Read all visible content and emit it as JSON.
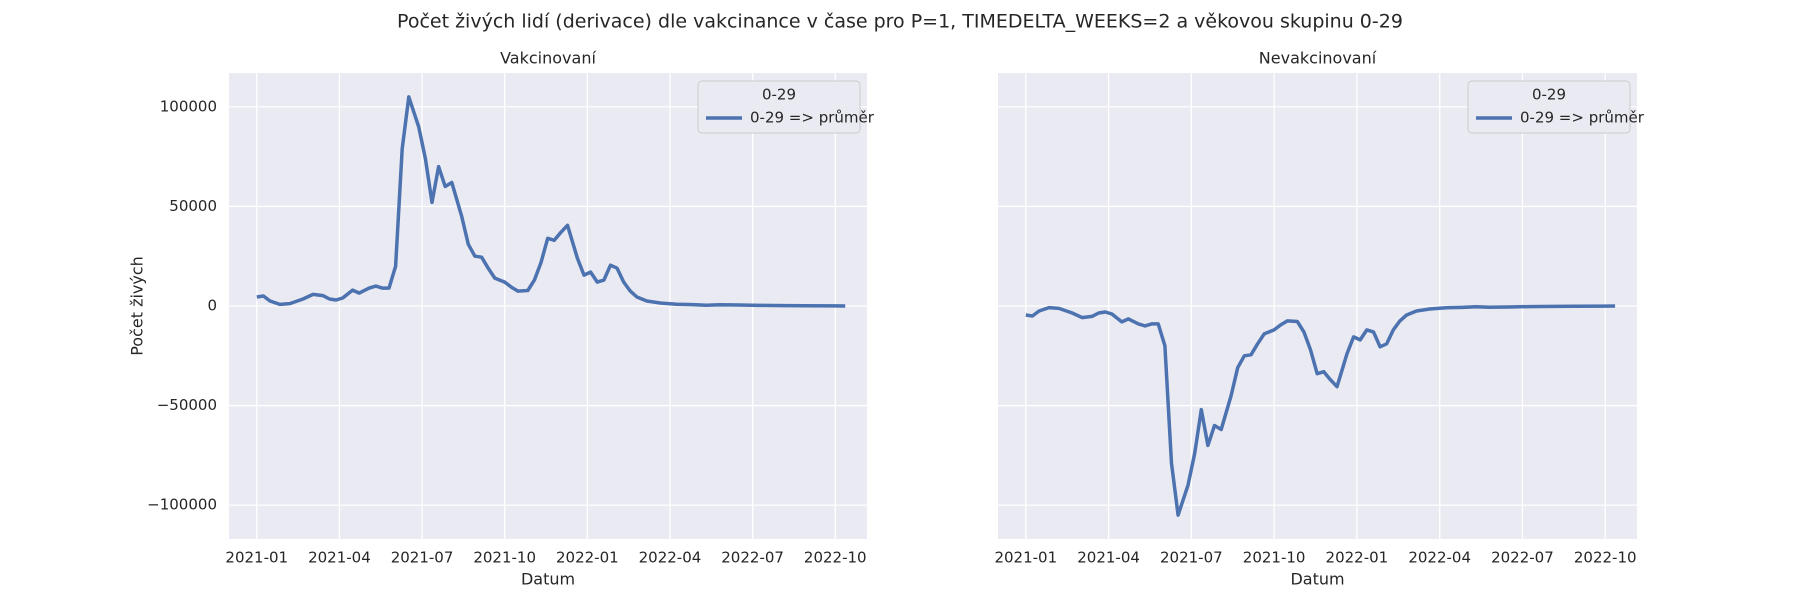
{
  "title": "Počet živých lidí (derivace) dle vakcinance v čase pro P=1, TIMEDELTA_WEEKS=2 a věkovou skupinu 0-29",
  "chart_data": [
    {
      "type": "line",
      "title": "Vakcinovaní",
      "xlabel": "Datum",
      "ylabel": "Počet živých",
      "legend_title": "0-29",
      "legend": "upper right",
      "grid": true,
      "ytick_labels": true,
      "xlim": [
        2020.916,
        2022.846
      ],
      "ylim": [
        -117000,
        117000
      ],
      "xticks": [
        {
          "value": 2021.0,
          "label": "2021-01"
        },
        {
          "value": 2021.25,
          "label": "2021-04"
        },
        {
          "value": 2021.5,
          "label": "2021-07"
        },
        {
          "value": 2021.75,
          "label": "2021-10"
        },
        {
          "value": 2022.0,
          "label": "2022-01"
        },
        {
          "value": 2022.25,
          "label": "2022-04"
        },
        {
          "value": 2022.5,
          "label": "2022-07"
        },
        {
          "value": 2022.75,
          "label": "2022-10"
        }
      ],
      "yticks": [
        {
          "value": -100000,
          "label": "−100000"
        },
        {
          "value": -50000,
          "label": "−50000"
        },
        0,
        50000,
        100000
      ],
      "x": [
        2021.0,
        2021.02,
        2021.04,
        2021.07,
        2021.1,
        2021.14,
        2021.17,
        2021.2,
        2021.22,
        2021.24,
        2021.26,
        2021.29,
        2021.31,
        2021.34,
        2021.36,
        2021.38,
        2021.4,
        2021.42,
        2021.44,
        2021.46,
        2021.49,
        2021.51,
        2021.53,
        2021.55,
        2021.57,
        2021.59,
        2021.62,
        2021.64,
        2021.66,
        2021.68,
        2021.7,
        2021.72,
        2021.75,
        2021.77,
        2021.79,
        2021.82,
        2021.84,
        2021.86,
        2021.88,
        2021.9,
        2021.92,
        2021.94,
        2021.97,
        2021.99,
        2022.01,
        2022.03,
        2022.05,
        2022.07,
        2022.09,
        2022.11,
        2022.13,
        2022.15,
        2022.18,
        2022.22,
        2022.27,
        2022.32,
        2022.36,
        2022.4,
        2022.46,
        2022.52,
        2022.6,
        2022.66,
        2022.75,
        2022.78
      ],
      "series": [
        {
          "name": "0-29 => průměr",
          "color": "#4c72b0",
          "values": [
            4500,
            5000,
            2500,
            800,
            1200,
            3500,
            5800,
            5200,
            3500,
            3000,
            4000,
            8000,
            6500,
            9000,
            10000,
            9000,
            9000,
            20000,
            79000,
            105000,
            90000,
            74000,
            52000,
            70000,
            60000,
            62000,
            45000,
            31000,
            25000,
            24500,
            19000,
            14000,
            12000,
            9500,
            7500,
            7800,
            13000,
            22000,
            34000,
            33000,
            37000,
            40500,
            24000,
            15500,
            17000,
            12000,
            13000,
            20500,
            19000,
            12000,
            7500,
            4500,
            2500,
            1500,
            900,
            700,
            400,
            600,
            500,
            300,
            200,
            100,
            50,
            0
          ]
        }
      ]
    },
    {
      "type": "line",
      "title": "Nevakcinovaní",
      "xlabel": "Datum",
      "legend_title": "0-29",
      "legend": "upper right",
      "grid": true,
      "ytick_labels": false,
      "xlim": [
        2020.916,
        2022.846
      ],
      "ylim": [
        -117000,
        117000
      ],
      "xticks": [
        {
          "value": 2021.0,
          "label": "2021-01"
        },
        {
          "value": 2021.25,
          "label": "2021-04"
        },
        {
          "value": 2021.5,
          "label": "2021-07"
        },
        {
          "value": 2021.75,
          "label": "2021-10"
        },
        {
          "value": 2022.0,
          "label": "2022-01"
        },
        {
          "value": 2022.25,
          "label": "2022-04"
        },
        {
          "value": 2022.5,
          "label": "2022-07"
        },
        {
          "value": 2022.75,
          "label": "2022-10"
        }
      ],
      "yticks": [
        -100000,
        -50000,
        0,
        50000,
        100000
      ],
      "x": [
        2021.0,
        2021.02,
        2021.04,
        2021.07,
        2021.1,
        2021.14,
        2021.17,
        2021.2,
        2021.22,
        2021.24,
        2021.26,
        2021.29,
        2021.31,
        2021.34,
        2021.36,
        2021.38,
        2021.4,
        2021.42,
        2021.44,
        2021.46,
        2021.49,
        2021.51,
        2021.53,
        2021.55,
        2021.57,
        2021.59,
        2021.62,
        2021.64,
        2021.66,
        2021.68,
        2021.7,
        2021.72,
        2021.75,
        2021.77,
        2021.79,
        2021.82,
        2021.84,
        2021.86,
        2021.88,
        2021.9,
        2021.92,
        2021.94,
        2021.97,
        2021.99,
        2022.01,
        2022.03,
        2022.05,
        2022.07,
        2022.09,
        2022.11,
        2022.13,
        2022.15,
        2022.18,
        2022.22,
        2022.27,
        2022.32,
        2022.36,
        2022.4,
        2022.46,
        2022.52,
        2022.6,
        2022.66,
        2022.75,
        2022.78
      ],
      "series": [
        {
          "name": "0-29 => průměr",
          "color": "#4c72b0",
          "values": [
            -4500,
            -5000,
            -2500,
            -800,
            -1200,
            -3500,
            -5800,
            -5200,
            -3500,
            -3000,
            -4000,
            -8000,
            -6500,
            -9000,
            -10000,
            -9000,
            -9000,
            -20000,
            -79000,
            -105000,
            -90000,
            -74000,
            -52000,
            -70000,
            -60000,
            -62000,
            -45000,
            -31000,
            -25000,
            -24500,
            -19000,
            -14000,
            -12000,
            -9500,
            -7500,
            -7800,
            -13000,
            -22000,
            -34000,
            -33000,
            -37000,
            -40500,
            -24000,
            -15500,
            -17000,
            -12000,
            -13000,
            -20500,
            -19000,
            -12000,
            -7500,
            -4500,
            -2500,
            -1500,
            -900,
            -700,
            -400,
            -600,
            -500,
            -300,
            -200,
            -100,
            -50,
            0
          ]
        }
      ]
    }
  ]
}
